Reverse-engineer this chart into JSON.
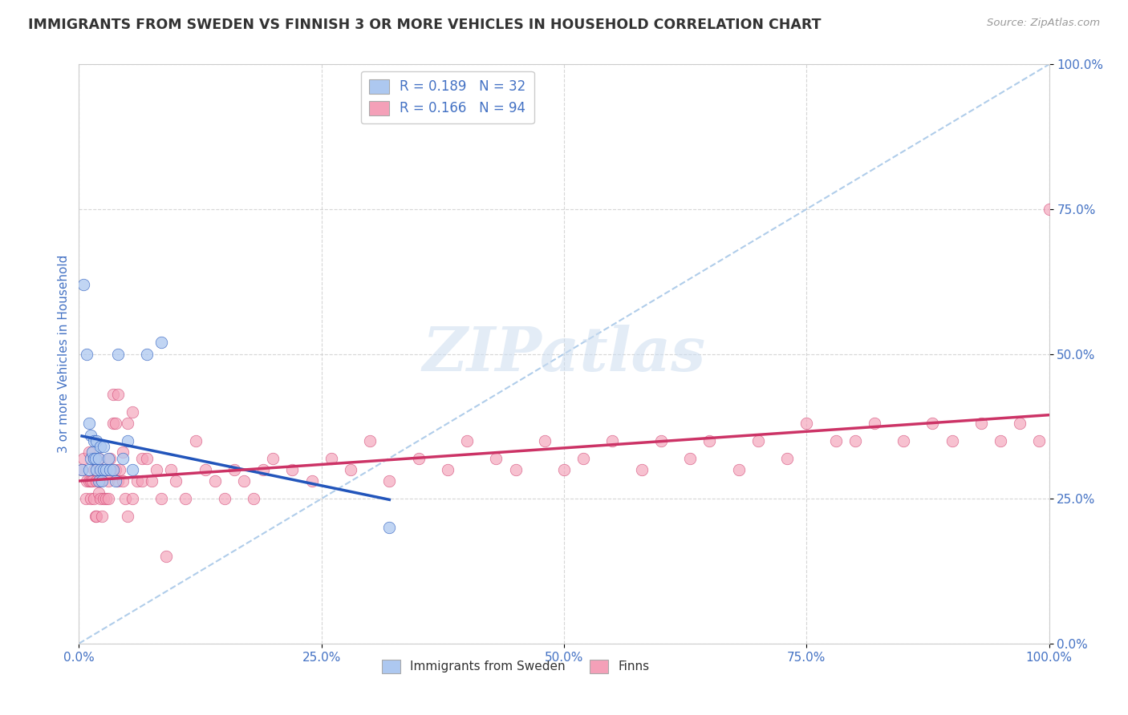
{
  "title": "IMMIGRANTS FROM SWEDEN VS FINNISH 3 OR MORE VEHICLES IN HOUSEHOLD CORRELATION CHART",
  "source": "Source: ZipAtlas.com",
  "ylabel": "3 or more Vehicles in Household",
  "watermark": "ZIPatlas",
  "legend_label1": "Immigrants from Sweden",
  "legend_label2": "Finns",
  "R1": 0.189,
  "N1": 32,
  "R2": 0.166,
  "N2": 94,
  "color1": "#adc8f0",
  "color2": "#f4a0b8",
  "line_color1": "#2255bb",
  "line_color2": "#cc3366",
  "diag_color": "#a8c8e8",
  "title_color": "#333333",
  "tick_label_color": "#4472c4",
  "background": "#ffffff",
  "xlim": [
    0,
    1
  ],
  "ylim": [
    0,
    1
  ],
  "xticks": [
    0.0,
    0.25,
    0.5,
    0.75,
    1.0
  ],
  "yticks": [
    0.0,
    0.25,
    0.5,
    0.75,
    1.0
  ],
  "xticklabels": [
    "0.0%",
    "25.0%",
    "50.0%",
    "75.0%",
    "100.0%"
  ],
  "yticklabels": [
    "0.0%",
    "25.0%",
    "50.0%",
    "75.0%",
    "100.0%"
  ],
  "sweden_x": [
    0.003,
    0.005,
    0.008,
    0.01,
    0.01,
    0.012,
    0.012,
    0.014,
    0.015,
    0.015,
    0.017,
    0.018,
    0.018,
    0.02,
    0.02,
    0.022,
    0.022,
    0.024,
    0.025,
    0.025,
    0.028,
    0.03,
    0.032,
    0.035,
    0.038,
    0.04,
    0.045,
    0.05,
    0.055,
    0.07,
    0.085,
    0.32
  ],
  "sweden_y": [
    0.3,
    0.62,
    0.5,
    0.3,
    0.38,
    0.32,
    0.36,
    0.33,
    0.32,
    0.35,
    0.32,
    0.3,
    0.35,
    0.32,
    0.28,
    0.34,
    0.3,
    0.28,
    0.34,
    0.3,
    0.3,
    0.32,
    0.3,
    0.3,
    0.28,
    0.5,
    0.32,
    0.35,
    0.3,
    0.5,
    0.52,
    0.2
  ],
  "finn_x": [
    0.003,
    0.005,
    0.007,
    0.008,
    0.01,
    0.01,
    0.012,
    0.012,
    0.014,
    0.015,
    0.015,
    0.017,
    0.018,
    0.018,
    0.02,
    0.02,
    0.022,
    0.022,
    0.024,
    0.025,
    0.025,
    0.028,
    0.028,
    0.03,
    0.03,
    0.032,
    0.035,
    0.035,
    0.038,
    0.038,
    0.04,
    0.04,
    0.042,
    0.045,
    0.045,
    0.048,
    0.05,
    0.05,
    0.055,
    0.055,
    0.06,
    0.065,
    0.065,
    0.07,
    0.075,
    0.08,
    0.085,
    0.09,
    0.095,
    0.1,
    0.11,
    0.12,
    0.13,
    0.14,
    0.15,
    0.16,
    0.17,
    0.18,
    0.19,
    0.2,
    0.22,
    0.24,
    0.26,
    0.28,
    0.3,
    0.32,
    0.35,
    0.38,
    0.4,
    0.43,
    0.45,
    0.48,
    0.5,
    0.52,
    0.55,
    0.58,
    0.6,
    0.63,
    0.65,
    0.68,
    0.7,
    0.73,
    0.75,
    0.78,
    0.8,
    0.82,
    0.85,
    0.88,
    0.9,
    0.93,
    0.95,
    0.97,
    0.99,
    1.0
  ],
  "finn_y": [
    0.3,
    0.32,
    0.25,
    0.28,
    0.28,
    0.33,
    0.25,
    0.28,
    0.28,
    0.3,
    0.25,
    0.22,
    0.28,
    0.22,
    0.32,
    0.26,
    0.28,
    0.25,
    0.22,
    0.3,
    0.25,
    0.25,
    0.3,
    0.25,
    0.28,
    0.32,
    0.38,
    0.43,
    0.3,
    0.38,
    0.28,
    0.43,
    0.3,
    0.28,
    0.33,
    0.25,
    0.22,
    0.38,
    0.25,
    0.4,
    0.28,
    0.32,
    0.28,
    0.32,
    0.28,
    0.3,
    0.25,
    0.15,
    0.3,
    0.28,
    0.25,
    0.35,
    0.3,
    0.28,
    0.25,
    0.3,
    0.28,
    0.25,
    0.3,
    0.32,
    0.3,
    0.28,
    0.32,
    0.3,
    0.35,
    0.28,
    0.32,
    0.3,
    0.35,
    0.32,
    0.3,
    0.35,
    0.3,
    0.32,
    0.35,
    0.3,
    0.35,
    0.32,
    0.35,
    0.3,
    0.35,
    0.32,
    0.38,
    0.35,
    0.35,
    0.38,
    0.35,
    0.38,
    0.35,
    0.38,
    0.35,
    0.38,
    0.35,
    0.75
  ]
}
